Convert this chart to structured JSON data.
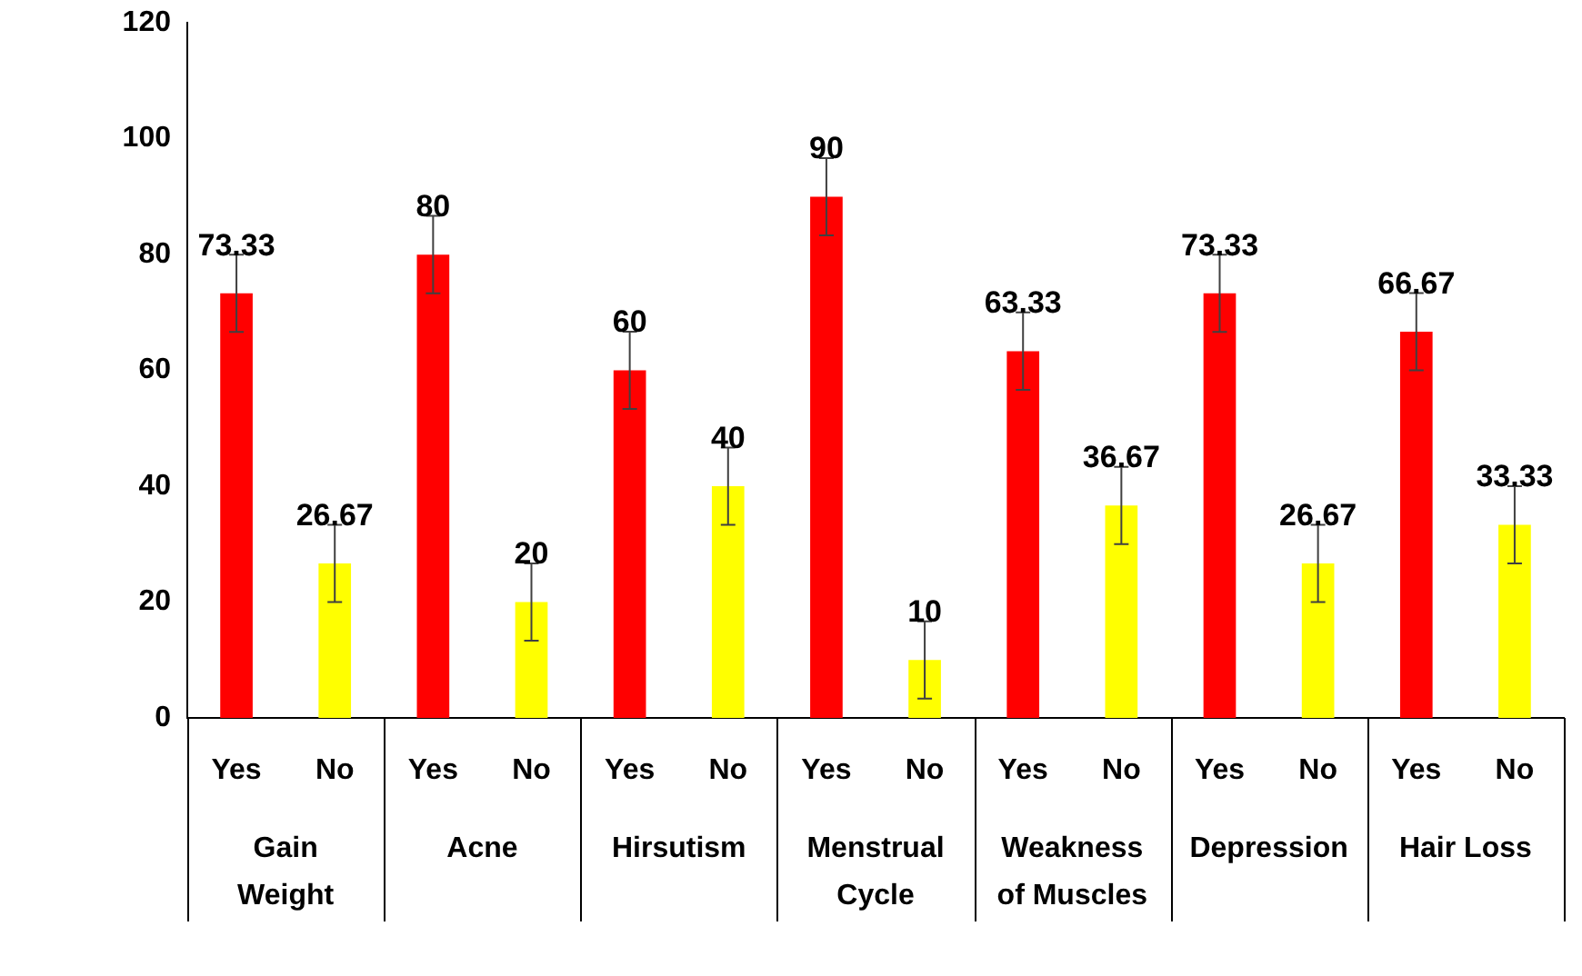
{
  "chart_data": {
    "type": "bar",
    "categories": [
      "Gain Weight",
      "Acne",
      "Hirsutism",
      "Menstrual Cycle",
      "Weakness of Muscles",
      "Depression",
      "Hair Loss"
    ],
    "series": [
      {
        "name": "Yes",
        "color": "#ff0000",
        "values": [
          73.33,
          80,
          60,
          90,
          63.33,
          73.33,
          66.67
        ],
        "errors": [
          6.67,
          6.67,
          6.67,
          6.67,
          6.67,
          6.67,
          6.67
        ]
      },
      {
        "name": "No",
        "color": "#ffff00",
        "values": [
          26.67,
          20,
          40,
          10,
          36.67,
          26.67,
          33.33
        ],
        "errors": [
          6.67,
          6.67,
          6.67,
          6.67,
          6.67,
          6.67,
          6.67
        ]
      }
    ],
    "ylim": [
      0,
      120
    ],
    "yticks": [
      0,
      20,
      40,
      60,
      80,
      100,
      120
    ],
    "data_labels": true
  }
}
